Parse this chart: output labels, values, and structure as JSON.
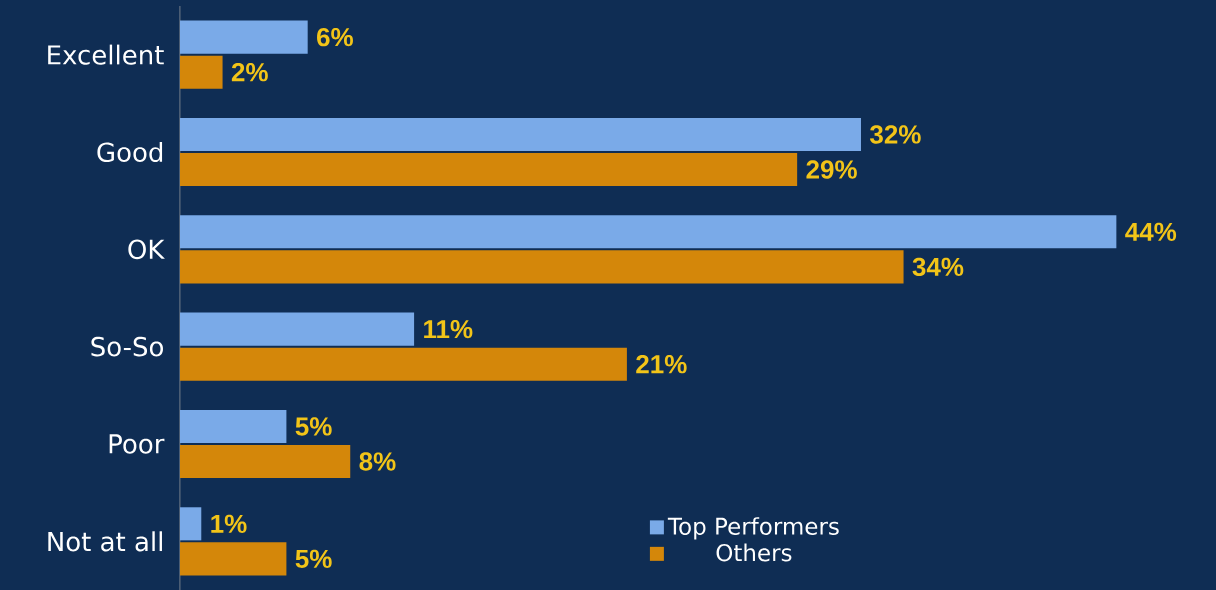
{
  "chart_data": {
    "type": "bar",
    "orientation": "horizontal",
    "categories": [
      "Excellent",
      "Good",
      "OK",
      "So-So",
      "Poor",
      "Not at all"
    ],
    "series": [
      {
        "name": "Top Performers",
        "color": "#7aaae8",
        "values": [
          6,
          32,
          44,
          11,
          5,
          1
        ],
        "value_labels": [
          "6%",
          "32%",
          "44%",
          "11%",
          "5%",
          "1%"
        ]
      },
      {
        "name": "Others",
        "color": "#d4870a",
        "values": [
          2,
          29,
          34,
          21,
          8,
          5
        ],
        "value_labels": [
          "2%",
          "29%",
          "34%",
          "21%",
          "8%",
          "5%"
        ]
      }
    ],
    "legend": "bottom"
  }
}
